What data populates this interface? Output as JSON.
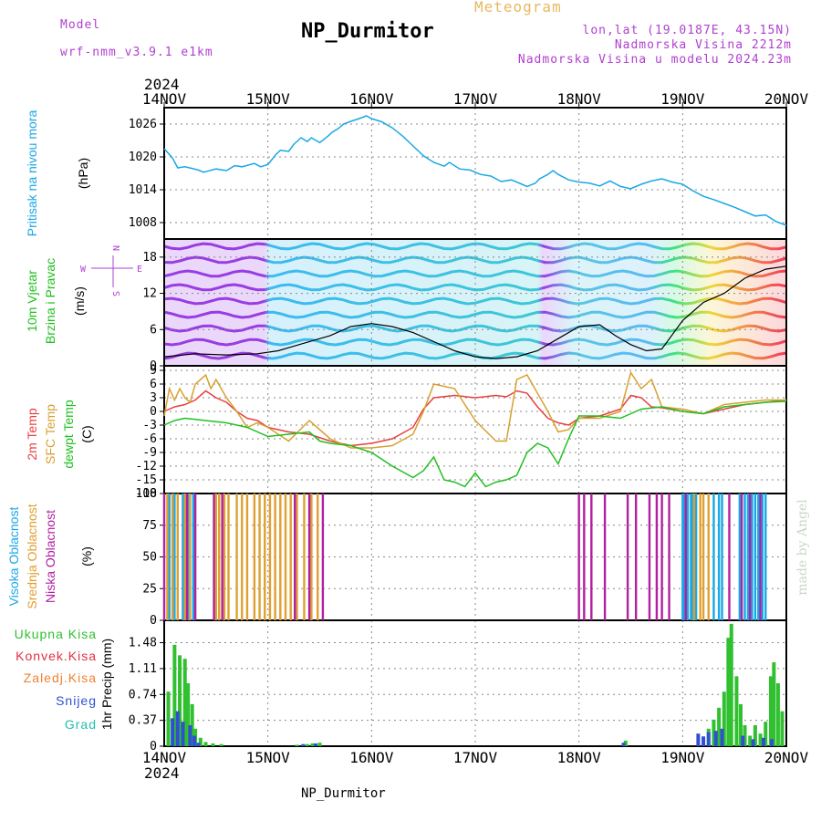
{
  "header": {
    "model_label": "Model",
    "model_name": "wrf-nmm_v3.9.1 e1km",
    "title": "NP_Durmitor",
    "meteogram_label": "Meteogram",
    "lonlat": "lon,lat (19.0187E, 43.15N)",
    "elevation": "Nadmorska Visina 2212m",
    "model_elevation": "Nadmorska Visina u modelu 2024.23m",
    "year_top": "2024",
    "year_bottom": "2024",
    "footer": "NP_Durmitor",
    "credit": "made by Angel"
  },
  "colors": {
    "pressure": "#1aa7e6",
    "temp2m": "#e84040",
    "sfc_temp": "#d8a030",
    "dewpt": "#20c020",
    "high_cloud": "#1aa7e6",
    "mid_cloud": "#e0a030",
    "low_cloud": "#b020a0",
    "total_precip": "#30c030",
    "conv_precip": "#e03040",
    "frozen_precip": "#f08030",
    "snow": "#3050d0",
    "graupel": "#20c0b0"
  },
  "chart_data": [
    {
      "type": "line",
      "panel": "pressure",
      "ylabel_left": "Pritisak na nivou mora",
      "ylabel_unit": "(hPa)",
      "ylim": [
        1005,
        1029
      ],
      "yticks": [
        "1026",
        "1020",
        "1014",
        "1008"
      ],
      "ytick_values": [
        1026,
        1020,
        1014,
        1008
      ],
      "x_labels": [
        "14NOV",
        "15NOV",
        "16NOV",
        "17NOV",
        "18NOV",
        "19NOV",
        "20NOV"
      ],
      "x_days": [
        0,
        1,
        2,
        3,
        4,
        5,
        6
      ],
      "grid": true,
      "series": [
        {
          "key": "pressure",
          "x": [
            0,
            0.08,
            0.13,
            0.2,
            0.33,
            0.38,
            0.5,
            0.6,
            0.68,
            0.75,
            0.87,
            0.93,
            1.0,
            1.08,
            1.12,
            1.2,
            1.25,
            1.32,
            1.38,
            1.42,
            1.5,
            1.58,
            1.62,
            1.68,
            1.73,
            1.8,
            1.88,
            1.95,
            2.0,
            2.1,
            2.2,
            2.3,
            2.4,
            2.5,
            2.6,
            2.7,
            2.75,
            2.85,
            2.95,
            3.05,
            3.15,
            3.25,
            3.35,
            3.45,
            3.5,
            3.58,
            3.62,
            3.7,
            3.75,
            3.8,
            3.9,
            4.0,
            4.1,
            4.2,
            4.3,
            4.4,
            4.5,
            4.6,
            4.7,
            4.8,
            4.9,
            5.0,
            5.1,
            5.2,
            5.3,
            5.4,
            5.5,
            5.6,
            5.7,
            5.8,
            5.9,
            6.0
          ],
          "y": [
            1021.5,
            1019.8,
            1018.0,
            1018.2,
            1017.6,
            1017.2,
            1017.8,
            1017.5,
            1018.4,
            1018.2,
            1018.8,
            1018.2,
            1018.6,
            1020.5,
            1021.2,
            1021.0,
            1022.3,
            1023.5,
            1022.8,
            1023.5,
            1022.6,
            1023.8,
            1024.5,
            1025.2,
            1026.0,
            1026.5,
            1027.0,
            1027.5,
            1027.0,
            1026.4,
            1025.3,
            1023.8,
            1022.0,
            1020.2,
            1019.0,
            1018.3,
            1019.0,
            1017.8,
            1017.6,
            1016.8,
            1016.5,
            1015.5,
            1015.8,
            1015.0,
            1014.6,
            1015.2,
            1016.0,
            1016.8,
            1017.5,
            1016.8,
            1015.8,
            1015.4,
            1015.2,
            1014.7,
            1015.6,
            1014.6,
            1014.2,
            1015.0,
            1015.6,
            1016.0,
            1015.4,
            1015.0,
            1013.8,
            1012.8,
            1012.2,
            1011.5,
            1010.8,
            1010.0,
            1009.2,
            1009.4,
            1008.2,
            1007.5
          ]
        }
      ]
    },
    {
      "type": "line",
      "panel": "wind",
      "ylabel_left": "10m Vjetar",
      "ylabel_left2": "Brzina i Pravac",
      "ylabel_unit": "(m/s)",
      "compass": [
        "N",
        "W",
        "E",
        "S"
      ],
      "ylim": [
        0,
        21
      ],
      "yticks": [
        "18",
        "12",
        "6",
        "0"
      ],
      "ytick_values": [
        18,
        12,
        6,
        0
      ],
      "grid": true,
      "series": [
        {
          "key": "speed",
          "x": [
            0,
            0.3,
            0.6,
            0.9,
            1.1,
            1.3,
            1.6,
            1.8,
            2.0,
            2.2,
            2.4,
            2.6,
            2.8,
            3.0,
            3.2,
            3.4,
            3.6,
            3.8,
            4.0,
            4.2,
            4.35,
            4.5,
            4.65,
            4.8,
            5.0,
            5.2,
            5.4,
            5.6,
            5.8,
            6.0
          ],
          "y": [
            1.5,
            2.0,
            1.8,
            2.0,
            2.5,
            3.5,
            5.0,
            6.5,
            7.0,
            6.5,
            5.5,
            4.0,
            2.5,
            1.5,
            1.2,
            1.5,
            2.5,
            4.5,
            6.5,
            6.8,
            5.0,
            3.5,
            2.5,
            2.8,
            7.5,
            10.5,
            12.0,
            14.5,
            16.0,
            16.5
          ]
        }
      ]
    },
    {
      "type": "line",
      "panel": "temperature",
      "ylabel_left": "2m Temp",
      "ylabel_left2": "SFC Temp",
      "ylabel_left3": "dewpt Temp",
      "ylabel_unit": "(C)",
      "ylim": [
        -18,
        10
      ],
      "yticks": [
        "9",
        "6",
        "3",
        "0",
        "-3",
        "-6",
        "-9",
        "-12",
        "-15",
        "-18"
      ],
      "ytick_values": [
        9,
        6,
        3,
        0,
        -3,
        -6,
        -9,
        -12,
        -15,
        -18
      ],
      "grid": true,
      "series": [
        {
          "key": "temp2m",
          "x": [
            0,
            0.1,
            0.2,
            0.3,
            0.4,
            0.5,
            0.6,
            0.7,
            0.8,
            0.9,
            1.0,
            1.2,
            1.4,
            1.6,
            1.8,
            2.0,
            2.2,
            2.4,
            2.5,
            2.6,
            2.8,
            3.0,
            3.2,
            3.3,
            3.4,
            3.5,
            3.6,
            3.7,
            3.8,
            3.9,
            4.0,
            4.2,
            4.4,
            4.5,
            4.6,
            4.7,
            4.8,
            5.0,
            5.2,
            5.4,
            5.6,
            5.8,
            6.0
          ],
          "y": [
            0,
            1.0,
            1.5,
            2.5,
            4.5,
            3.0,
            2.0,
            0,
            -1.5,
            -2.0,
            -3.5,
            -4.5,
            -5.0,
            -6.5,
            -7.5,
            -7.0,
            -6.0,
            -3.5,
            0.5,
            3.0,
            3.5,
            3.0,
            3.5,
            3.2,
            4.5,
            4.0,
            1.0,
            -1.5,
            -2.5,
            -3.0,
            -1.5,
            -1.0,
            0.5,
            3.5,
            3.0,
            1.0,
            0.8,
            0.0,
            -0.5,
            0.5,
            1.5,
            2.0,
            2.5
          ]
        },
        {
          "key": "sfc_temp",
          "x": [
            0,
            0.05,
            0.1,
            0.15,
            0.2,
            0.25,
            0.3,
            0.4,
            0.45,
            0.5,
            0.6,
            0.7,
            0.8,
            0.9,
            1.0,
            1.2,
            1.4,
            1.5,
            1.6,
            1.8,
            2.0,
            2.2,
            2.4,
            2.5,
            2.6,
            2.8,
            3.0,
            3.2,
            3.3,
            3.4,
            3.5,
            3.6,
            3.7,
            3.8,
            3.9,
            4.0,
            4.2,
            4.4,
            4.5,
            4.6,
            4.7,
            4.8,
            5.0,
            5.2,
            5.4,
            5.6,
            5.8,
            6.0
          ],
          "y": [
            -1,
            5,
            2.5,
            5,
            3,
            2,
            6,
            8,
            5,
            7,
            3,
            0,
            -3.5,
            -2.5,
            -3.5,
            -6.5,
            -2,
            -4,
            -6,
            -8,
            -8,
            -7.5,
            -5,
            0,
            6,
            5,
            -2,
            -6.5,
            -6.5,
            7,
            8,
            4,
            0,
            -4.5,
            -4,
            -1.5,
            -1.5,
            0,
            8.5,
            5,
            7,
            1,
            0.5,
            -0.5,
            1.5,
            2,
            2.5,
            2.5
          ]
        },
        {
          "key": "dewpt",
          "x": [
            0,
            0.1,
            0.2,
            0.4,
            0.6,
            0.8,
            1.0,
            1.2,
            1.4,
            1.5,
            1.6,
            1.8,
            2.0,
            2.2,
            2.4,
            2.5,
            2.6,
            2.7,
            2.8,
            2.9,
            3.0,
            3.1,
            3.2,
            3.3,
            3.4,
            3.5,
            3.6,
            3.7,
            3.8,
            3.9,
            4.0,
            4.2,
            4.4,
            4.5,
            4.6,
            4.8,
            5.0,
            5.2,
            5.4,
            5.6,
            5.8,
            6.0
          ],
          "y": [
            -3,
            -2,
            -1.5,
            -2,
            -2.5,
            -3.5,
            -5.5,
            -5,
            -4.5,
            -6.5,
            -7,
            -7.5,
            -9,
            -12,
            -14.5,
            -13,
            -10,
            -15,
            -15.5,
            -16.5,
            -13.5,
            -16.5,
            -15.5,
            -15,
            -14,
            -9,
            -7,
            -8,
            -11.5,
            -6,
            -1,
            -1,
            -1.5,
            -0.5,
            0.5,
            1,
            0,
            -0.5,
            1,
            1.5,
            2,
            2.2
          ]
        }
      ]
    },
    {
      "type": "bar",
      "panel": "cloud",
      "ylabel_left": "Visoka Oblacnost",
      "ylabel_left2": "Srednja Oblacnost",
      "ylabel_left3": "Niska Oblacnost",
      "ylabel_unit": "(%)",
      "ylim": [
        0,
        100
      ],
      "yticks": [
        "100",
        "75",
        "50",
        "25",
        "0"
      ],
      "ytick_values": [
        100,
        75,
        50,
        25,
        0
      ],
      "grid": true,
      "series": [
        {
          "key": "high_cloud",
          "x": [
            0.05,
            0.1,
            0.18,
            0.23,
            0.28,
            5.0,
            5.02,
            5.05,
            5.08,
            5.1,
            5.13,
            5.3,
            5.35,
            5.38,
            5.55,
            5.6,
            5.63,
            5.67,
            5.7,
            5.73,
            5.77,
            5.8
          ],
          "values": [
            100,
            100,
            100,
            100,
            100,
            100,
            100,
            100,
            100,
            100,
            100,
            100,
            100,
            100,
            100,
            100,
            100,
            100,
            100,
            100,
            100,
            100
          ]
        },
        {
          "key": "mid_cloud",
          "x": [
            0.03,
            0.08,
            0.13,
            0.2,
            0.25,
            0.5,
            0.53,
            0.58,
            0.62,
            0.7,
            0.75,
            0.8,
            0.87,
            0.92,
            0.97,
            1.02,
            1.07,
            1.12,
            1.17,
            1.22,
            1.28,
            1.35,
            1.42,
            1.48,
            5.03,
            5.11,
            5.17,
            5.2,
            5.25
          ],
          "values": [
            100,
            100,
            100,
            100,
            100,
            100,
            100,
            100,
            100,
            100,
            100,
            100,
            100,
            100,
            100,
            100,
            100,
            100,
            100,
            100,
            100,
            100,
            100,
            100,
            100,
            100,
            100,
            100,
            100
          ]
        },
        {
          "key": "low_cloud",
          "x": [
            0.0,
            0.22,
            0.3,
            0.48,
            0.56,
            1.26,
            1.4,
            1.53,
            4.0,
            4.05,
            4.12,
            4.25,
            4.47,
            4.55,
            4.68,
            4.75,
            4.8,
            4.87,
            5.03,
            5.45,
            5.57,
            5.65,
            5.75
          ],
          "values": [
            100,
            100,
            100,
            100,
            100,
            100,
            100,
            100,
            100,
            100,
            100,
            100,
            100,
            100,
            100,
            100,
            100,
            100,
            100,
            100,
            100,
            100,
            100
          ]
        }
      ]
    },
    {
      "type": "bar",
      "panel": "precip",
      "ylabel_left": "Ukupna Kisa",
      "ylabel_left2": "Konvek.Kisa",
      "ylabel_left3": "Zaledj.Kisa",
      "ylabel_left4": "Snijeg",
      "ylabel_left5": "Grad",
      "ylabel_unit": "1hr Precip (mm)",
      "ylim": [
        0,
        1.8
      ],
      "yticks": [
        "1.48",
        "1.11",
        "0.74",
        "0.37",
        "0"
      ],
      "ytick_values": [
        1.48,
        1.11,
        0.74,
        0.37,
        0
      ],
      "x_labels": [
        "14NOV",
        "15NOV",
        "16NOV",
        "17NOV",
        "18NOV",
        "19NOV",
        "20NOV"
      ],
      "x_days": [
        0,
        1,
        2,
        3,
        4,
        5,
        6
      ],
      "grid": true,
      "series": [
        {
          "key": "total_precip",
          "x": [
            0.04,
            0.1,
            0.15,
            0.2,
            0.23,
            0.27,
            0.3,
            0.35,
            0.4,
            0.47,
            0.55,
            1.28,
            1.38,
            1.43,
            1.5,
            4.45,
            5.25,
            5.3,
            5.35,
            5.4,
            5.44,
            5.47,
            5.52,
            5.56,
            5.6,
            5.65,
            5.7,
            5.75,
            5.8,
            5.85,
            5.88,
            5.92,
            5.96
          ],
          "values": [
            0.78,
            1.45,
            1.3,
            1.25,
            0.9,
            0.6,
            0.25,
            0.12,
            0.06,
            0.04,
            0.03,
            0.02,
            0.03,
            0.04,
            0.05,
            0.08,
            0.25,
            0.38,
            0.55,
            0.78,
            1.55,
            1.75,
            1.0,
            0.6,
            0.3,
            0.15,
            0.3,
            0.18,
            0.35,
            1.0,
            1.2,
            0.9,
            0.5
          ]
        },
        {
          "key": "snow",
          "x": [
            0.08,
            0.13,
            0.18,
            0.25,
            0.29,
            0.33,
            1.34,
            1.46,
            4.43,
            5.15,
            5.2,
            5.25,
            5.32,
            5.38,
            5.58,
            5.68,
            5.78,
            5.86
          ],
          "values": [
            0.4,
            0.5,
            0.35,
            0.3,
            0.15,
            0.05,
            0.03,
            0.04,
            0.05,
            0.18,
            0.14,
            0.2,
            0.22,
            0.25,
            0.15,
            0.1,
            0.12,
            0.1
          ]
        }
      ]
    }
  ]
}
